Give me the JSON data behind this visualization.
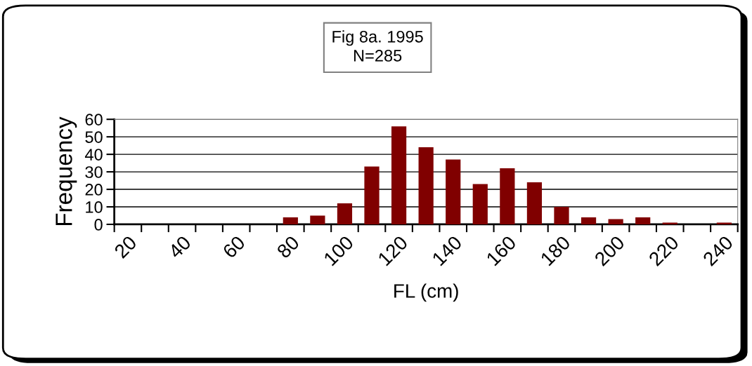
{
  "chart_data": {
    "type": "bar",
    "title": "Fig 8a. 1995\nN=285",
    "xlabel": "FL (cm)",
    "ylabel": "Frequency",
    "categories": [
      "20",
      null,
      "40",
      null,
      "60",
      null,
      "80",
      null,
      "100",
      null,
      "120",
      null,
      "140",
      null,
      "160",
      null,
      "180",
      null,
      "200",
      null,
      "220",
      null,
      "240"
    ],
    "values": [
      0,
      0,
      0,
      0,
      0,
      0,
      4,
      5,
      12,
      33,
      56,
      44,
      37,
      23,
      32,
      24,
      10,
      4,
      3,
      4,
      1,
      0,
      1
    ],
    "color": "#800000",
    "ylim": [
      0,
      60
    ],
    "yticks": [
      0,
      10,
      20,
      30,
      40,
      50,
      60
    ],
    "grid": "y",
    "legend": false
  }
}
